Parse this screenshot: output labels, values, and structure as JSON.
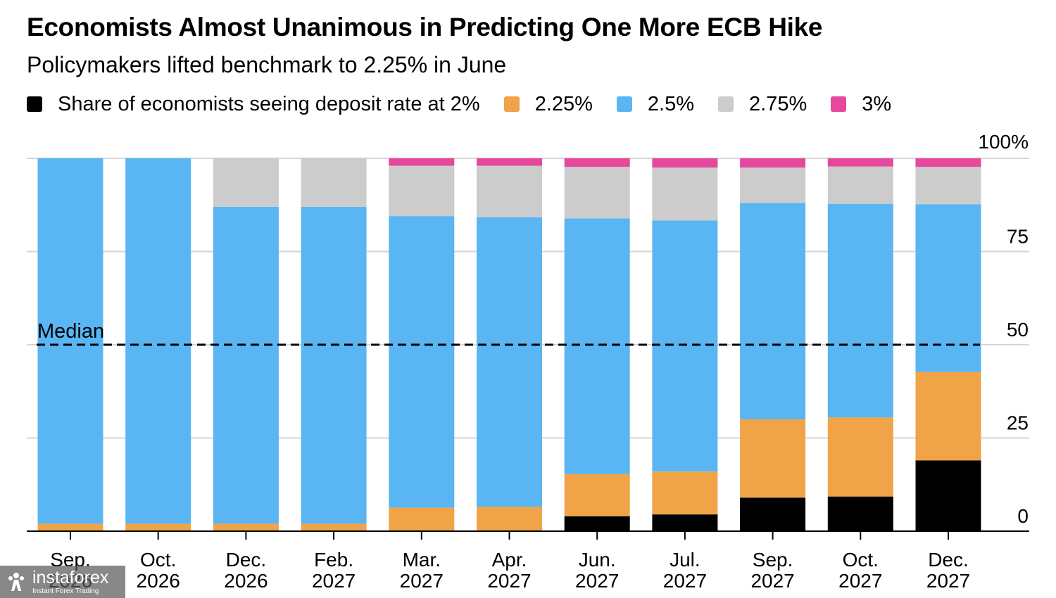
{
  "title": "Economists Almost Unanimous in Predicting One More ECB Hike",
  "subtitle": "Policymakers lifted benchmark to 2.25% in June",
  "legend": [
    {
      "label": "Share of economists seeing deposit rate at 2%",
      "color": "#000000"
    },
    {
      "label": "2.25%",
      "color": "#f0a447"
    },
    {
      "label": "2.5%",
      "color": "#5ab5f3"
    },
    {
      "label": "2.75%",
      "color": "#cccccc"
    },
    {
      "label": "3%",
      "color": "#e5489c"
    }
  ],
  "watermark": {
    "brand": "instaforex",
    "tagline": "Instant Forex Trading"
  },
  "chart_data": {
    "type": "bar",
    "stacked": true,
    "title": "Economists Almost Unanimous in Predicting One More ECB Hike",
    "subtitle": "Policymakers lifted benchmark to 2.25% in June",
    "categories": [
      [
        "Sep.",
        "2026"
      ],
      [
        "Oct.",
        "2026"
      ],
      [
        "Dec.",
        "2026"
      ],
      [
        "Feb.",
        "2027"
      ],
      [
        "Mar.",
        "2027"
      ],
      [
        "Apr.",
        "2027"
      ],
      [
        "Jun.",
        "2027"
      ],
      [
        "Jul.",
        "2027"
      ],
      [
        "Sep.",
        "2027"
      ],
      [
        "Oct.",
        "2027"
      ],
      [
        "Dec.",
        "2027"
      ]
    ],
    "series": [
      {
        "name": "Share of economists seeing deposit rate at 2%",
        "color": "#000000",
        "values": [
          0,
          0,
          0,
          0,
          0,
          0,
          4,
          4.5,
          9,
          9.3,
          19
        ]
      },
      {
        "name": "2.25%",
        "color": "#f0a447",
        "values": [
          2,
          2,
          2,
          2,
          6.3,
          6.5,
          11.3,
          11.5,
          21,
          21.2,
          23.7
        ]
      },
      {
        "name": "2.5%",
        "color": "#5ab5f3",
        "values": [
          98,
          98,
          85,
          85,
          78.2,
          77.7,
          68.6,
          67.3,
          58,
          57.3,
          45
        ]
      },
      {
        "name": "2.75%",
        "color": "#cccccc",
        "values": [
          0,
          0,
          13,
          13,
          13.5,
          13.8,
          13.8,
          14.2,
          9.5,
          10,
          10
        ]
      },
      {
        "name": "3%",
        "color": "#e5489c",
        "values": [
          0,
          0,
          0,
          0,
          2,
          2,
          2.3,
          2.5,
          2.5,
          2.2,
          2.3
        ]
      }
    ],
    "ylim": [
      0,
      100
    ],
    "yticks": [
      {
        "value": 0,
        "label": "0"
      },
      {
        "value": 25,
        "label": "25"
      },
      {
        "value": 50,
        "label": "50"
      },
      {
        "value": 75,
        "label": "75"
      },
      {
        "value": 100,
        "label": "100%"
      }
    ],
    "reference_line": {
      "value": 50,
      "label": "Median"
    },
    "grid": true,
    "legend_position": "top"
  }
}
